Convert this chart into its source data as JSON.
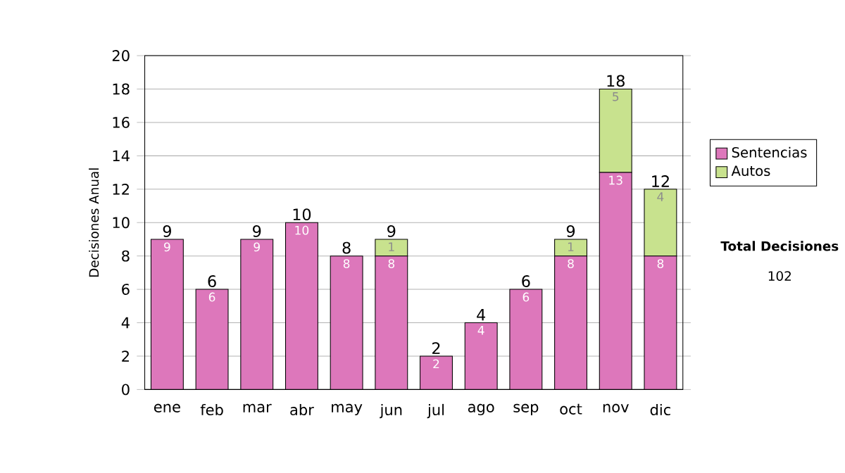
{
  "chart_data": {
    "type": "bar",
    "stacked": true,
    "ylabel": "Decisiones Anual",
    "categories": [
      "ene",
      "feb",
      "mar",
      "abr",
      "may",
      "jun",
      "jul",
      "ago",
      "sep",
      "oct",
      "nov",
      "dic"
    ],
    "series": [
      {
        "name": "Sentencias",
        "color": "#dd77bb",
        "values": [
          9,
          6,
          9,
          10,
          8,
          8,
          2,
          4,
          6,
          8,
          13,
          8
        ],
        "value_labels": [
          "9",
          "6",
          "9",
          "10",
          "8",
          "8",
          "2",
          "4",
          "6",
          "8",
          "13",
          "8"
        ]
      },
      {
        "name": "Autos",
        "color": "#c8e28e",
        "values": [
          0,
          0,
          0,
          0,
          0,
          1,
          0,
          0,
          0,
          1,
          5,
          4
        ],
        "value_labels": [
          null,
          null,
          null,
          null,
          null,
          "1",
          null,
          null,
          null,
          "1",
          "5",
          "4"
        ]
      }
    ],
    "totals": [
      "9",
      "6",
      "9",
      "10",
      "8",
      "9",
      "2",
      "4",
      "6",
      "9",
      "18",
      "12"
    ],
    "ylim": [
      0,
      20
    ],
    "yticks": [
      0,
      2,
      4,
      6,
      8,
      10,
      12,
      14,
      16,
      18,
      20
    ],
    "grid": "y",
    "legend": "right",
    "annotations": [
      "Total Decisiones",
      "102"
    ]
  }
}
